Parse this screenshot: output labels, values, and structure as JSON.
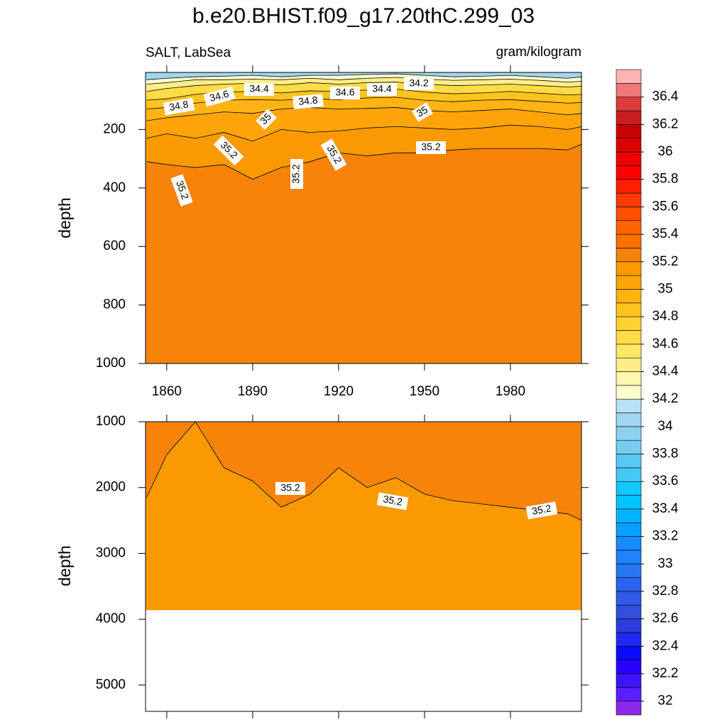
{
  "chart_data": [
    {
      "type": "contour",
      "title": "b.e20.BHIST.f09_g17.20thC.299_03",
      "subtitle_left": "SALT, LabSea",
      "subtitle_right": "gram/kilogram",
      "ylabel": "depth",
      "x": [
        1853,
        1860,
        1870,
        1880,
        1890,
        1900,
        1910,
        1920,
        1930,
        1940,
        1950,
        1960,
        1970,
        1980,
        1990,
        2000,
        2005
      ],
      "xlim": [
        1852.6,
        2004.8
      ],
      "xticks": [
        1860,
        1890,
        1920,
        1950,
        1980
      ],
      "ylim": [
        5,
        1000
      ],
      "yticks": [
        200,
        400,
        600,
        800,
        1000
      ],
      "y_reversed": true,
      "band_levels": [
        34.0,
        34.2,
        34.4,
        34.6,
        34.8,
        34.9,
        35.0,
        35.1,
        35.2
      ],
      "boundaries": [
        [
          30,
          25,
          20,
          18,
          15,
          20,
          15,
          15,
          12,
          10,
          15,
          20,
          18,
          15,
          20,
          25,
          20
        ],
        [
          45,
          40,
          30,
          30,
          28,
          30,
          25,
          30,
          25,
          22,
          28,
          32,
          30,
          28,
          32,
          38,
          35
        ],
        [
          70,
          60,
          50,
          45,
          42,
          48,
          40,
          45,
          40,
          38,
          45,
          50,
          48,
          45,
          50,
          55,
          52
        ],
        [
          100,
          95,
          80,
          72,
          70,
          75,
          68,
          70,
          65,
          62,
          72,
          78,
          75,
          70,
          76,
          82,
          80
        ],
        [
          130,
          125,
          110,
          100,
          98,
          100,
          95,
          98,
          92,
          90,
          100,
          105,
          100,
          98,
          104,
          110,
          108
        ],
        [
          170,
          160,
          150,
          140,
          145,
          130,
          125,
          130,
          128,
          125,
          135,
          140,
          135,
          130,
          140,
          150,
          145
        ],
        [
          230,
          215,
          230,
          210,
          240,
          200,
          210,
          205,
          195,
          190,
          195,
          200,
          195,
          185,
          190,
          200,
          190
        ],
        [
          310,
          320,
          330,
          320,
          370,
          330,
          310,
          280,
          290,
          280,
          280,
          270,
          265,
          265,
          265,
          270,
          250
        ]
      ],
      "contour_labels": [
        34.8,
        34.6,
        34.4,
        34.8,
        34.6,
        34.4,
        34.2,
        35,
        35,
        35.2,
        35.2,
        35.2,
        35.2,
        35.2
      ]
    },
    {
      "type": "contour",
      "ylabel": "depth",
      "x": [
        1853,
        1860,
        1870,
        1880,
        1890,
        1900,
        1910,
        1920,
        1930,
        1940,
        1950,
        1960,
        1970,
        1980,
        1990,
        2000,
        2005
      ],
      "xlim": [
        1852.6,
        2004.8
      ],
      "xticks": [
        1860,
        1890,
        1920,
        1950,
        1980
      ],
      "ylim": [
        1000,
        5400
      ],
      "yticks": [
        1000,
        2000,
        3000,
        4000,
        5000
      ],
      "y_reversed": true,
      "band_levels": [
        35.2,
        35.1
      ],
      "boundaries": [
        [
          2150,
          1500,
          1000,
          1700,
          1900,
          2300,
          2100,
          1700,
          2000,
          1850,
          2100,
          2200,
          2250,
          2300,
          2350,
          2400,
          2500
        ]
      ],
      "data_bottom": 3860,
      "contour_labels": [
        35.2,
        35.2,
        35.2
      ]
    }
  ],
  "colorbar": {
    "clim": [
      31.9,
      36.6
    ],
    "step": 0.1,
    "ticks": [
      32,
      32.2,
      32.4,
      32.6,
      32.8,
      33,
      33.2,
      33.4,
      33.6,
      33.8,
      34,
      34.2,
      34.4,
      34.6,
      34.8,
      35,
      35.2,
      35.4,
      35.6,
      35.8,
      36,
      36.2,
      36.4
    ],
    "colors": [
      "#8c28e6",
      "#5a1eff",
      "#3c14ff",
      "#2800ff",
      "#0a0aff",
      "#1e28f0",
      "#2d3cdc",
      "#3250dc",
      "#325ae6",
      "#2864f0",
      "#2878f5",
      "#1e82ff",
      "#148cff",
      "#0aa0ff",
      "#00b4ff",
      "#00c3ff",
      "#14c8ff",
      "#46c8f5",
      "#5ac8f5",
      "#78ccf0",
      "#8cd2f0",
      "#a0d7f0",
      "#b9e1f5",
      "#ffffcc",
      "#fff8b0",
      "#ffee88",
      "#ffe866",
      "#ffdc46",
      "#ffd232",
      "#ffc31e",
      "#ffb414",
      "#ffa50a",
      "#fa9a00",
      "#f78308",
      "#ff7000",
      "#ff6400",
      "#ff5000",
      "#ff3c00",
      "#ff1e00",
      "#ff0000",
      "#f00000",
      "#dc0000",
      "#c80000",
      "#c81e1e",
      "#dc3c3c",
      "#f07878",
      "#ffb4b4"
    ]
  }
}
